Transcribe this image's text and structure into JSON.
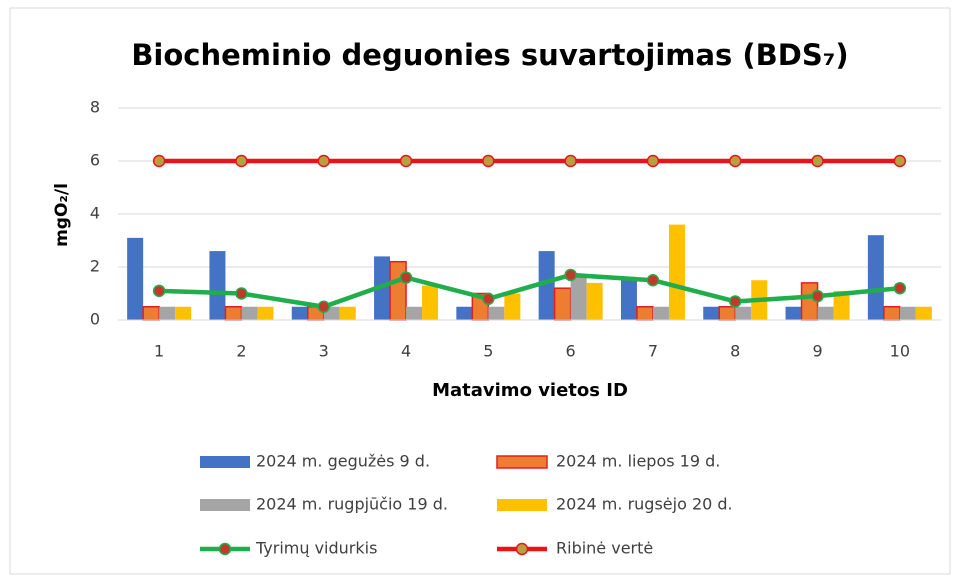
{
  "chart_data": {
    "type": "bar",
    "title": "Biocheminio deguonies suvartojimas (BDS₇)",
    "x_label": "Matavimo vietos ID",
    "y_label": "mgO₂/l",
    "categories": [
      "1",
      "2",
      "3",
      "4",
      "5",
      "6",
      "7",
      "8",
      "9",
      "10"
    ],
    "ylim": [
      0,
      8
    ],
    "yticks": [
      0,
      2,
      4,
      6,
      8
    ],
    "grid": true,
    "legend": "bottom",
    "series": [
      {
        "name": "2024 m. gegužės 9 d.",
        "type": "bar",
        "color": "#4472c4",
        "values": [
          3.1,
          2.6,
          0.5,
          2.4,
          0.5,
          2.6,
          1.5,
          0.5,
          0.5,
          3.2
        ]
      },
      {
        "name": "2024 m. liepos 19 d.",
        "type": "bar",
        "color": "#ed7d31",
        "edge": "#e02020",
        "values": [
          0.5,
          0.5,
          0.5,
          2.2,
          1.0,
          1.2,
          0.5,
          0.5,
          1.4,
          0.5
        ]
      },
      {
        "name": "2024 m. rugpjūčio 19 d.",
        "type": "bar",
        "color": "#a5a5a5",
        "values": [
          0.5,
          0.5,
          0.5,
          0.5,
          0.5,
          1.7,
          0.5,
          0.5,
          0.5,
          0.5
        ]
      },
      {
        "name": "2024 m. rugsėjo 20 d.",
        "type": "bar",
        "color": "#ffc000",
        "values": [
          0.5,
          0.5,
          0.5,
          1.3,
          1.0,
          1.4,
          3.6,
          1.5,
          1.1,
          0.5
        ]
      },
      {
        "name": "Tyrimų vidurkis",
        "type": "line",
        "color": "#1fae4b",
        "marker": "#c0392b",
        "values": [
          1.1,
          1.0,
          0.5,
          1.6,
          0.8,
          1.7,
          1.5,
          0.7,
          0.9,
          1.2
        ]
      },
      {
        "name": "Ribinė vertė",
        "type": "line",
        "color": "#e8141a",
        "marker": "#b8a040",
        "values": [
          6,
          6,
          6,
          6,
          6,
          6,
          6,
          6,
          6,
          6
        ]
      }
    ]
  }
}
